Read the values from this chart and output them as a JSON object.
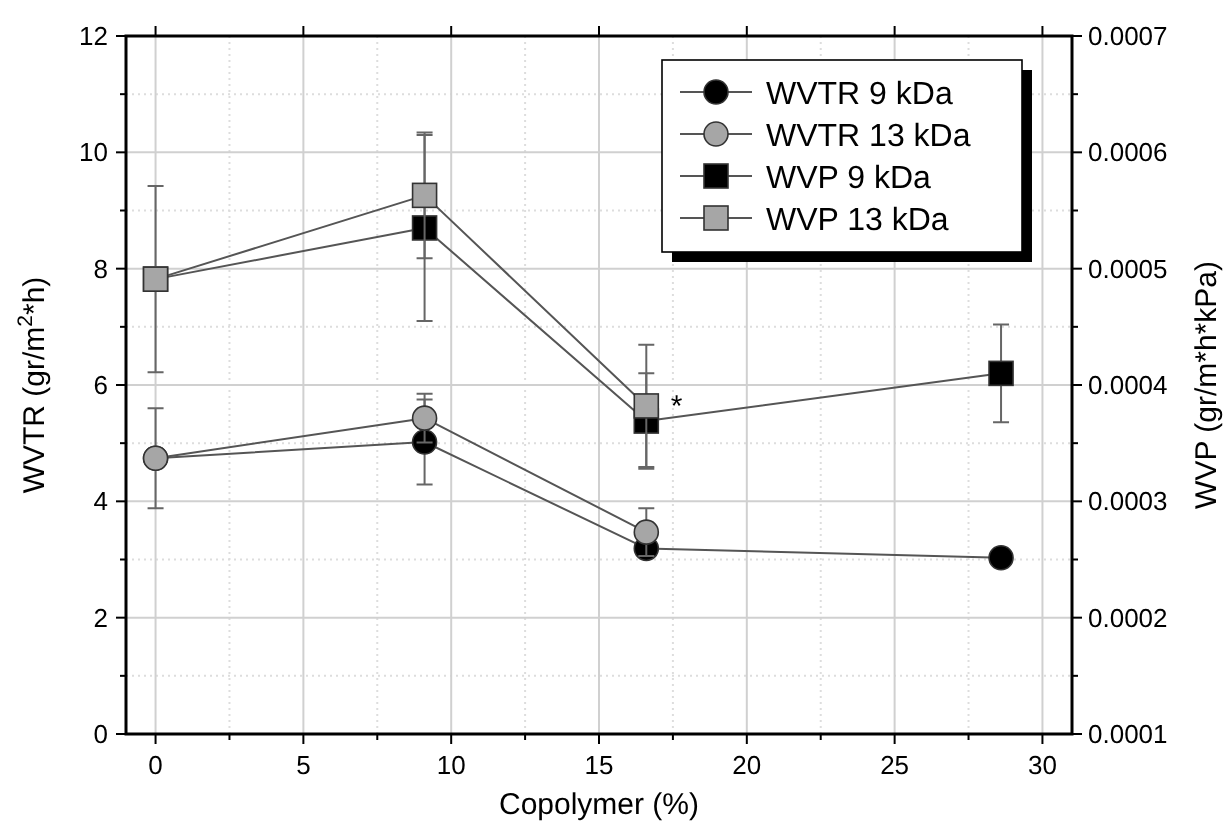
{
  "chart_data": {
    "type": "line",
    "xlabel": "Copolymer (%)",
    "ylabel": "WVTR (gr/m$^{2}$*h)",
    "y2label": "WVP (gr/m*h*kPa)",
    "xlim": [
      -1,
      31
    ],
    "xticks": [
      0,
      5,
      10,
      15,
      20,
      25,
      30
    ],
    "ylim": [
      0,
      12
    ],
    "yticks": [
      0,
      2,
      4,
      6,
      8,
      10,
      12
    ],
    "y2lim": [
      0.0001,
      0.0007
    ],
    "y2ticks": [
      0.0001,
      0.0002,
      0.0003,
      0.0004,
      0.0005,
      0.0006,
      0.0007
    ],
    "grid": true,
    "legend": "top right",
    "line_style": "solid",
    "annotations": [
      "*"
    ],
    "series": [
      {
        "name": "WVTR 9 kDa",
        "color": "#000000",
        "marker": "circle",
        "x": [
          0,
          9.1,
          16.6,
          28.6
        ],
        "values": [
          4.74,
          5.02,
          3.19,
          3.03
        ],
        "errors": [
          null,
          0.73,
          null,
          null
        ]
      },
      {
        "name": "WVTR 13 kDa",
        "color": "#a6a6a6",
        "marker": "circle",
        "x": [
          0,
          9.1,
          16.6
        ],
        "values": [
          4.74,
          5.43,
          3.47
        ],
        "errors": [
          0.86,
          0.42,
          0.41
        ]
      },
      {
        "name": "WVP 9 kDa",
        "color": "#000000",
        "marker": "square",
        "axis": "y2",
        "x": [
          0,
          9.1,
          16.6,
          28.6
        ],
        "values": [
          0.000491,
          0.000535,
          0.000369,
          0.00041
        ],
        "errors": [
          null,
          8e-05,
          4.1e-05,
          4.2e-05
        ]
      },
      {
        "name": "WVP 13 kDa",
        "color": "#a6a6a6",
        "marker": "square",
        "axis": "y2",
        "x": [
          0,
          9.1,
          16.6
        ],
        "values": [
          0.000491,
          0.000563,
          0.000382
        ],
        "errors": [
          8e-05,
          5.4e-05,
          5.25e-05
        ]
      }
    ]
  }
}
